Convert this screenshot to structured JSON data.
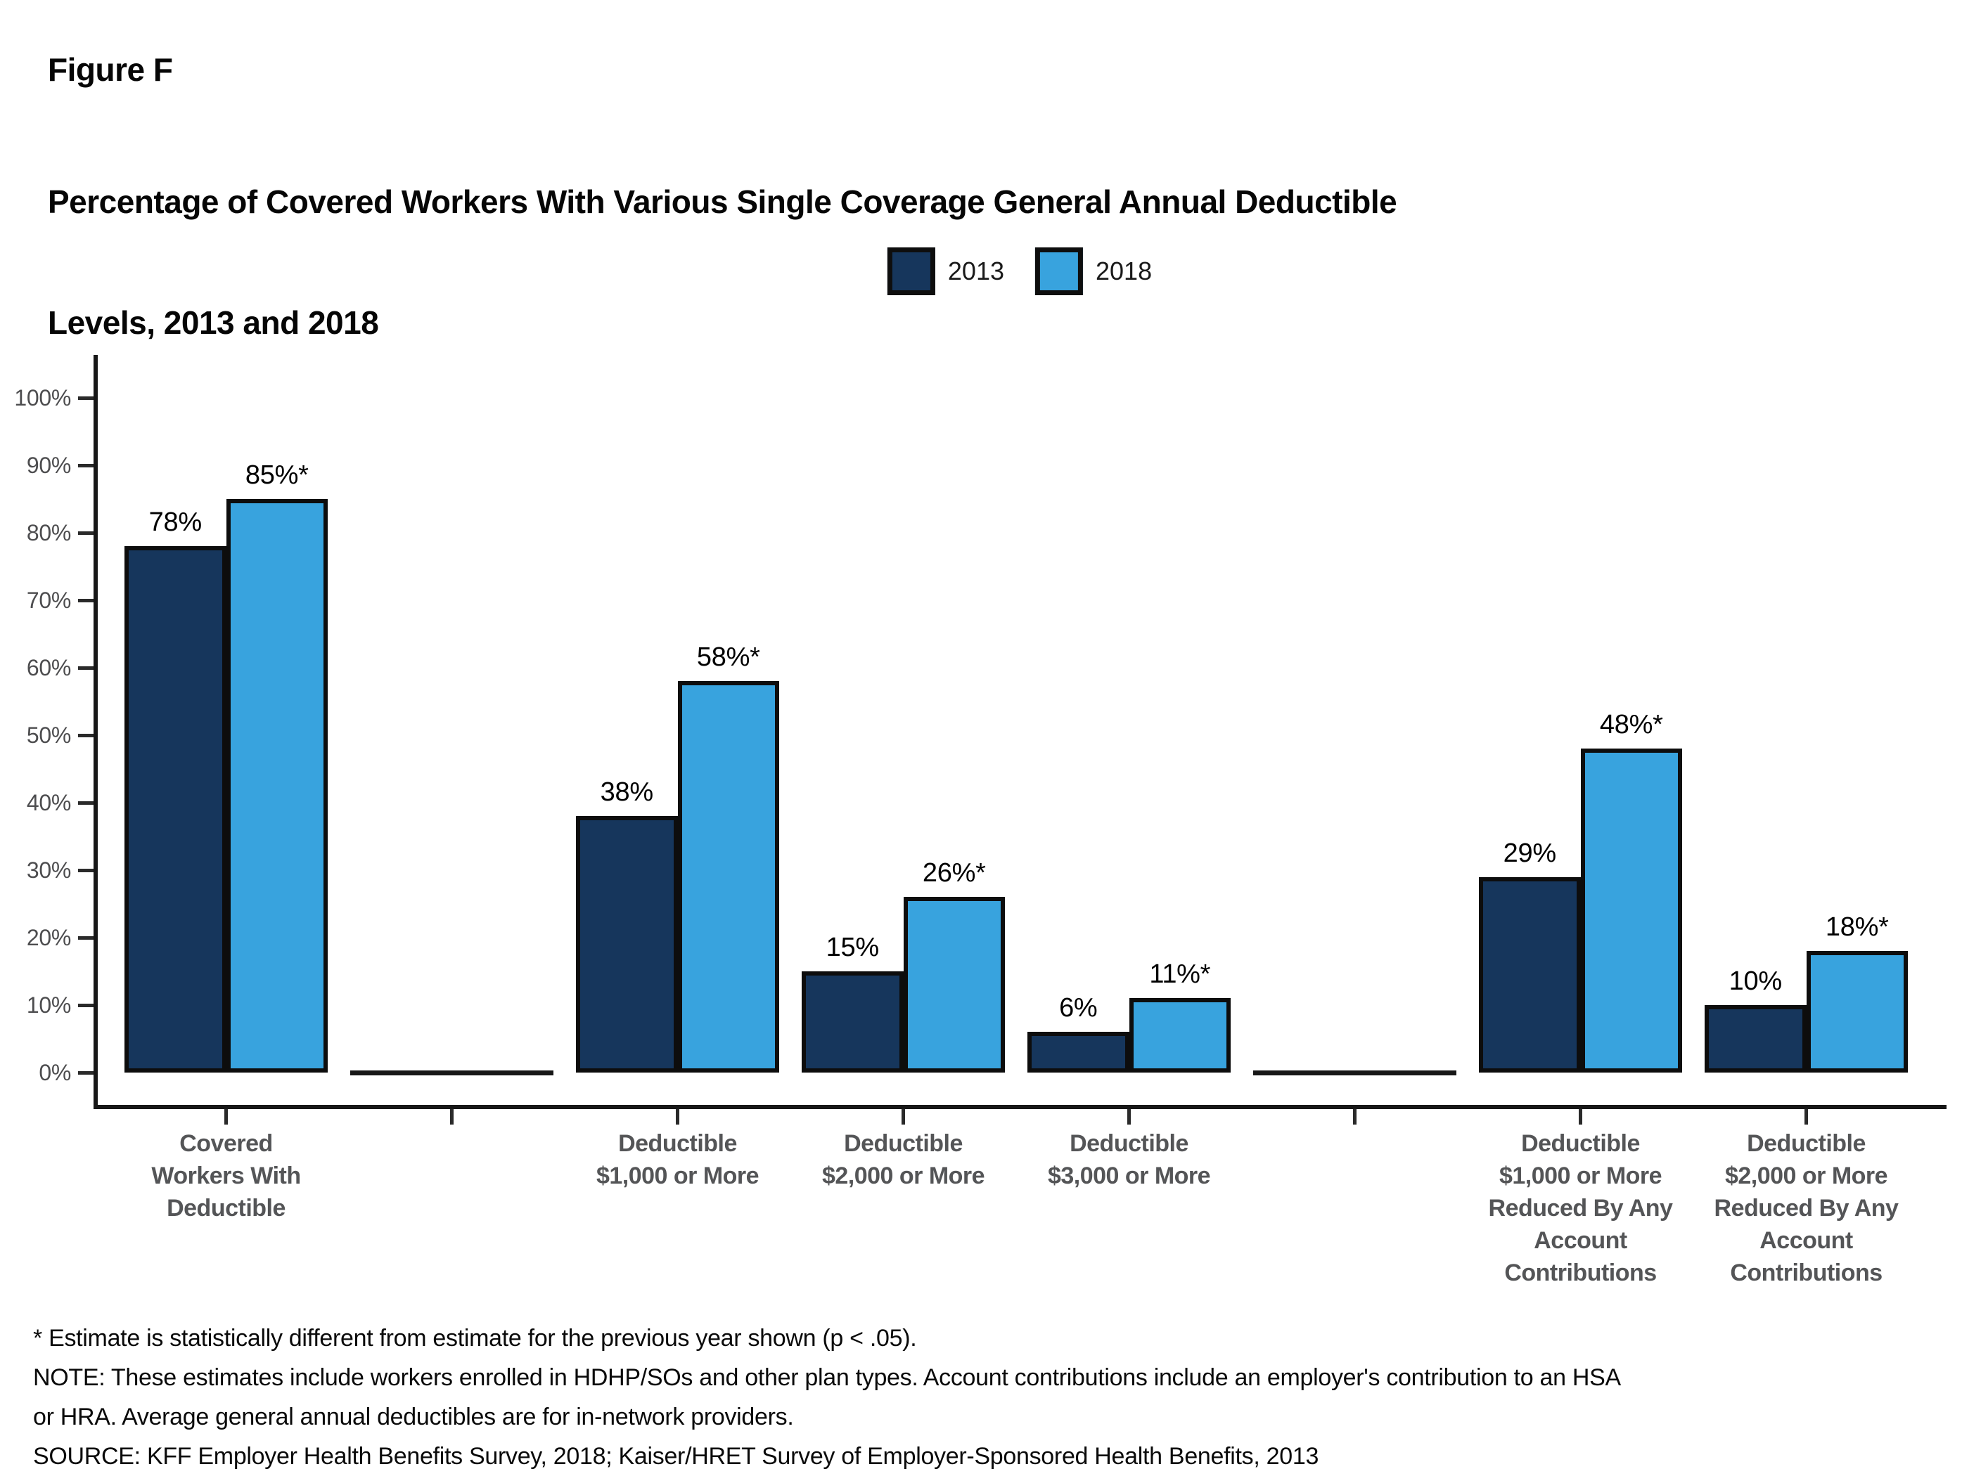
{
  "figure": {
    "label": "Figure F",
    "title_lines": [
      "Percentage of Covered Workers With Various Single Coverage General Annual Deductible",
      "Levels, 2013 and 2018"
    ]
  },
  "legend": {
    "items": [
      {
        "label": "2013",
        "color": "#16365C"
      },
      {
        "label": "2018",
        "color": "#38A3DE"
      }
    ]
  },
  "chart_data": {
    "type": "bar",
    "title": "Percentage of Covered Workers With Various Single Coverage General Annual Deductible Levels, 2013 and 2018",
    "categories": [
      "Covered Workers With Deductible",
      "Deductible $1,000 or More",
      "Deductible $2,000 or More",
      "Deductible $3,000 or More",
      "Deductible $1,000 or More Reduced By Any Account Contributions",
      "Deductible $2,000 or More Reduced By Any Account Contributions"
    ],
    "category_label_lines": [
      [
        "Covered",
        "Workers With",
        "Deductible"
      ],
      [
        "Deductible",
        "$1,000 or More"
      ],
      [
        "Deductible",
        "$2,000 or More"
      ],
      [
        "Deductible",
        "$3,000 or More"
      ],
      [
        "Deductible",
        "$1,000 or More",
        "Reduced By Any",
        "Account",
        "Contributions"
      ],
      [
        "Deductible",
        "$2,000 or More",
        "Reduced By Any",
        "Account",
        "Contributions"
      ]
    ],
    "series": [
      {
        "name": "2013",
        "color": "#16365C",
        "values": [
          78,
          38,
          15,
          6,
          29,
          10
        ],
        "labels": [
          "78%",
          "38%",
          "15%",
          "6%",
          "29%",
          "10%"
        ]
      },
      {
        "name": "2018",
        "color": "#38A3DE",
        "values": [
          85,
          58,
          26,
          11,
          48,
          18
        ],
        "labels": [
          "85%*",
          "58%*",
          "26%*",
          "11%*",
          "48%*",
          "18%*"
        ]
      }
    ],
    "ylim": [
      0,
      100
    ],
    "yticks": [
      "100%",
      "90%",
      "80%",
      "70%",
      "60%",
      "50%",
      "40%",
      "30%",
      "20%",
      "10%",
      "0%"
    ],
    "grid": false,
    "legend_position": "top-center",
    "slot_order": [
      0,
      null,
      1,
      2,
      3,
      null,
      4,
      5
    ]
  },
  "footnotes": {
    "lines": [
      "* Estimate is statistically different from estimate for the previous year shown (p < .05).",
      "NOTE: These estimates include workers enrolled in HDHP/SOs and other plan types. Account contributions include an employer's contribution to an HSA",
      "or HRA. Average general annual deductibles are for in-network providers.",
      "SOURCE: KFF Employer Health Benefits Survey, 2018; Kaiser/HRET Survey of Employer-Sponsored Health Benefits, 2013"
    ]
  }
}
